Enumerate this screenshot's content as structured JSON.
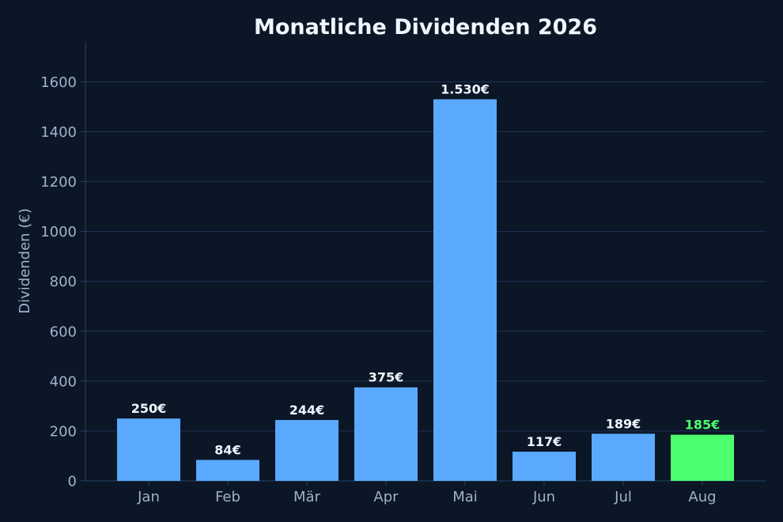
{
  "chart_data": {
    "type": "bar",
    "title": "Monatliche Dividenden 2026",
    "xlabel": "",
    "ylabel": "Dividenden (€)",
    "categories": [
      "Jan",
      "Feb",
      "Mär",
      "Apr",
      "Mai",
      "Jun",
      "Jul",
      "Aug"
    ],
    "values": [
      250,
      84,
      244,
      375,
      1530,
      117,
      189,
      185
    ],
    "data_labels": [
      "250€",
      "84€",
      "244€",
      "375€",
      "1.530€",
      "117€",
      "189€",
      "185€"
    ],
    "ylim": [
      0,
      1760
    ],
    "yticks": [
      0,
      200,
      400,
      600,
      800,
      1000,
      1200,
      1400,
      1600
    ],
    "grid": "horizontal",
    "highlight_index": 7,
    "colors": {
      "background": "#0b1626",
      "bar": "#5ba9ff",
      "highlight_bar": "#4cff6e",
      "grid": "#1c3557",
      "axis": "#2a4466",
      "text": "#9fb3cc",
      "title": "#f0f6ff",
      "label": "#f0f6ff",
      "highlight_label": "#4cff6e"
    }
  }
}
